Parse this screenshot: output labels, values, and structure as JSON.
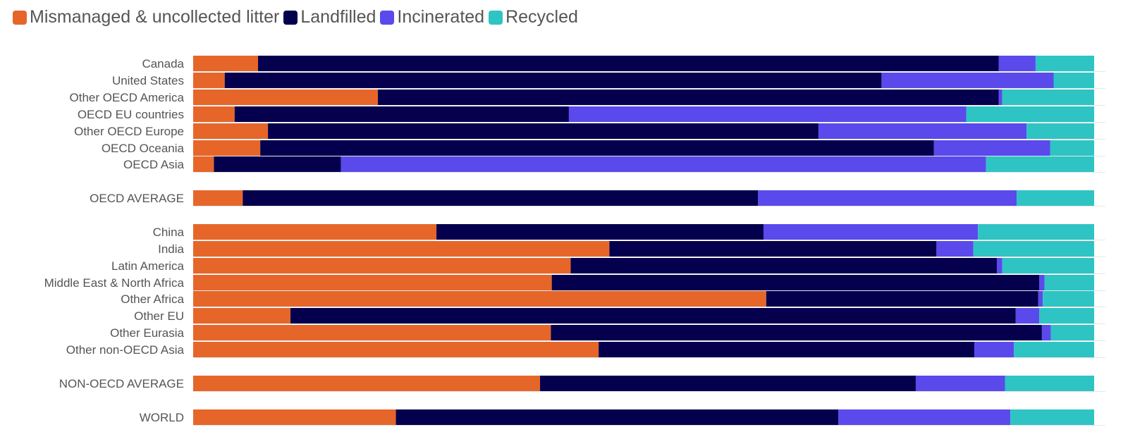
{
  "chart_data": {
    "type": "bar",
    "orientation": "horizontal",
    "stacked": "percent",
    "legend_position": "top-left",
    "grid": false,
    "xlim": [
      0,
      100
    ],
    "categories": [
      "Canada",
      "United States",
      "Other OECD America",
      "OECD EU countries",
      "Other OECD Europe",
      "OECD Oceania",
      "OECD Asia",
      "OECD AVERAGE",
      "China",
      "India",
      "Latin America",
      "Middle East & North Africa",
      "Other Africa",
      "Other EU",
      "Other Eurasia",
      "Other non-OECD Asia",
      "NON-OECD AVERAGE",
      "WORLD"
    ],
    "series": [
      {
        "name": "Mismanaged & uncollected litter",
        "color": "#e6662a",
        "values": [
          7.2,
          3.5,
          20.5,
          4.6,
          8.3,
          6.7,
          2.3,
          5.5,
          27.0,
          46.2,
          41.9,
          39.8,
          63.6,
          10.8,
          39.7,
          45.0,
          38.5,
          22.5
        ]
      },
      {
        "name": "Landfilled",
        "color": "#05004e",
        "values": [
          82.2,
          72.9,
          68.9,
          37.1,
          61.1,
          67.3,
          14.1,
          57.2,
          36.3,
          36.3,
          47.3,
          54.1,
          30.2,
          80.5,
          54.5,
          41.7,
          41.7,
          49.1
        ]
      },
      {
        "name": "Incinerated",
        "color": "#5a4aec",
        "values": [
          4.1,
          19.1,
          0.4,
          44.1,
          23.1,
          11.6,
          71.6,
          28.7,
          23.8,
          4.1,
          0.6,
          0.6,
          0.5,
          2.6,
          1.0,
          4.4,
          9.9,
          19.1
        ]
      },
      {
        "name": "Recycled",
        "color": "#2ec4c4",
        "values": [
          6.5,
          4.5,
          10.2,
          14.2,
          7.5,
          4.4,
          12.0,
          8.6,
          12.9,
          13.4,
          10.2,
          5.5,
          5.7,
          6.1,
          4.8,
          8.9,
          9.9,
          9.3
        ]
      }
    ]
  }
}
